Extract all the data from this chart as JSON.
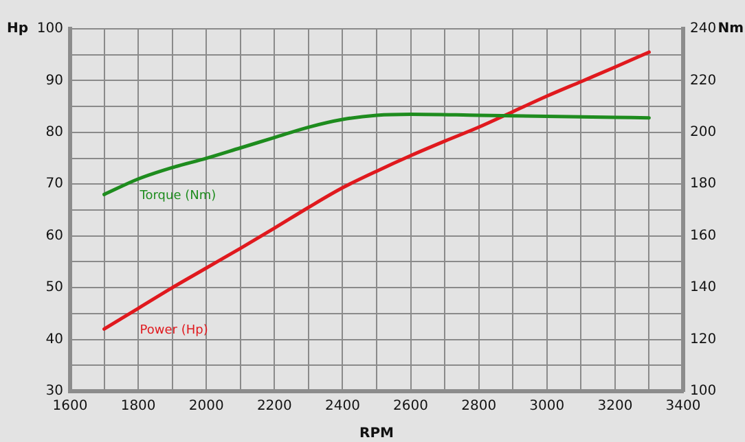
{
  "chart_data": {
    "type": "line",
    "xlabel": "RPM",
    "ylabel": "Hp",
    "y2label": "Nm",
    "xlim": [
      1600,
      3400
    ],
    "xticks": [
      1600,
      {
        "value": 1700,
        "label": null
      },
      1800,
      {
        "value": 1900,
        "label": null
      },
      2000,
      {
        "value": 2100,
        "label": null
      },
      2200,
      {
        "value": 2300,
        "label": null
      },
      2400,
      {
        "value": 2500,
        "label": null
      },
      2600,
      {
        "value": 2700,
        "label": null
      },
      2800,
      {
        "value": 2900,
        "label": null
      },
      3000,
      {
        "value": 3100,
        "label": null
      },
      3200,
      {
        "value": 3300,
        "label": null
      },
      3400
    ],
    "ylim": [
      30,
      100
    ],
    "yticks": [
      30,
      {
        "value": 35,
        "label": null
      },
      40,
      {
        "value": 45,
        "label": null
      },
      50,
      {
        "value": 55,
        "label": null
      },
      60,
      {
        "value": 65,
        "label": null
      },
      70,
      {
        "value": 75,
        "label": null
      },
      80,
      {
        "value": 85,
        "label": null
      },
      90,
      {
        "value": 95,
        "label": null
      },
      100
    ],
    "y2lim": [
      100,
      240
    ],
    "y2ticks": [
      100,
      120,
      140,
      160,
      180,
      200,
      220,
      240
    ],
    "grid": true,
    "legend": false,
    "marker": "none",
    "line_style": "solid",
    "series": [
      {
        "name": "Torque (Nm)",
        "color": "#1e8c1e",
        "axis": "y2",
        "x": [
          1700,
          1800,
          1900,
          2000,
          2100,
          2200,
          2300,
          2400,
          2500,
          2600,
          2800,
          3000,
          3200,
          3300
        ],
        "values": [
          176,
          182,
          186.4,
          190,
          194,
          198,
          202,
          205,
          206.6,
          207,
          206.6,
          206.2,
          205.8,
          205.6
        ]
      },
      {
        "name": "Power (Hp)",
        "color": "#e0191e",
        "x": [
          1700,
          1800,
          1900,
          2000,
          2100,
          2200,
          2300,
          2400,
          2500,
          2600,
          2700,
          2800,
          2900,
          3000,
          3100,
          3200,
          3300
        ],
        "values": [
          42,
          46,
          50,
          53.8,
          57.6,
          61.5,
          65.5,
          69.3,
          72.5,
          75.5,
          78.3,
          81,
          84,
          87,
          89.8,
          92.6,
          95.5
        ]
      }
    ]
  }
}
